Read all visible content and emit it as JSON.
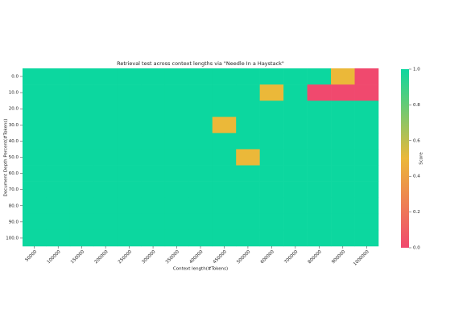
{
  "chart_data": {
    "type": "heatmap",
    "title": "Retrieval test across context lengths via \"Needle In a Haystack\"",
    "x_label": "Context length(#Tokens)",
    "y_label": "Document Depth Percent(#Tokens)",
    "colorbar_label": "Score",
    "categories": [
      "50000",
      "100000",
      "150000",
      "200000",
      "250000",
      "300000",
      "350000",
      "400000",
      "450000",
      "500000",
      "600000",
      "700000",
      "800000",
      "900000",
      "1000000"
    ],
    "rows": [
      "0.0",
      "10.0",
      "20.0",
      "30.0",
      "40.0",
      "50.0",
      "60.0",
      "70.0",
      "80.0",
      "90.0",
      "100.0"
    ],
    "z": [
      [
        1,
        1,
        1,
        1,
        1,
        1,
        1,
        1,
        1,
        1,
        1,
        1,
        1,
        0.5,
        0
      ],
      [
        1,
        1,
        1,
        1,
        1,
        1,
        1,
        1,
        1,
        1,
        0.5,
        1,
        0,
        0,
        0
      ],
      [
        1,
        1,
        1,
        1,
        1,
        1,
        1,
        1,
        1,
        1,
        1,
        1,
        1,
        1,
        1
      ],
      [
        1,
        1,
        1,
        1,
        1,
        1,
        1,
        1,
        0.5,
        1,
        1,
        1,
        1,
        1,
        1
      ],
      [
        1,
        1,
        1,
        1,
        1,
        1,
        1,
        1,
        1,
        1,
        1,
        1,
        1,
        1,
        1
      ],
      [
        1,
        1,
        1,
        1,
        1,
        1,
        1,
        1,
        1,
        0.5,
        1,
        1,
        1,
        1,
        1
      ],
      [
        1,
        1,
        1,
        1,
        1,
        1,
        1,
        1,
        1,
        1,
        1,
        1,
        1,
        1,
        1
      ],
      [
        1,
        1,
        1,
        1,
        1,
        1,
        1,
        1,
        1,
        1,
        1,
        1,
        1,
        1,
        1
      ],
      [
        1,
        1,
        1,
        1,
        1,
        1,
        1,
        1,
        1,
        1,
        1,
        1,
        1,
        1,
        1
      ],
      [
        1,
        1,
        1,
        1,
        1,
        1,
        1,
        1,
        1,
        1,
        1,
        1,
        1,
        1,
        1
      ],
      [
        1,
        1,
        1,
        1,
        1,
        1,
        1,
        1,
        1,
        1,
        1,
        1,
        1,
        1,
        1
      ]
    ],
    "colorscale": [
      [
        0,
        "#f0496e"
      ],
      [
        0.5,
        "#ebb839"
      ],
      [
        1,
        "#0cd79f"
      ]
    ],
    "zlim": [
      0,
      1
    ],
    "zticks": [
      {
        "value": 0,
        "label": "0.0"
      },
      {
        "value": 0.2,
        "label": "0.2"
      },
      {
        "value": 0.4,
        "label": "0.4"
      },
      {
        "value": 0.6,
        "label": "0.6"
      },
      {
        "value": 0.8,
        "label": "0.8"
      },
      {
        "value": 1,
        "label": "1.0"
      }
    ]
  }
}
